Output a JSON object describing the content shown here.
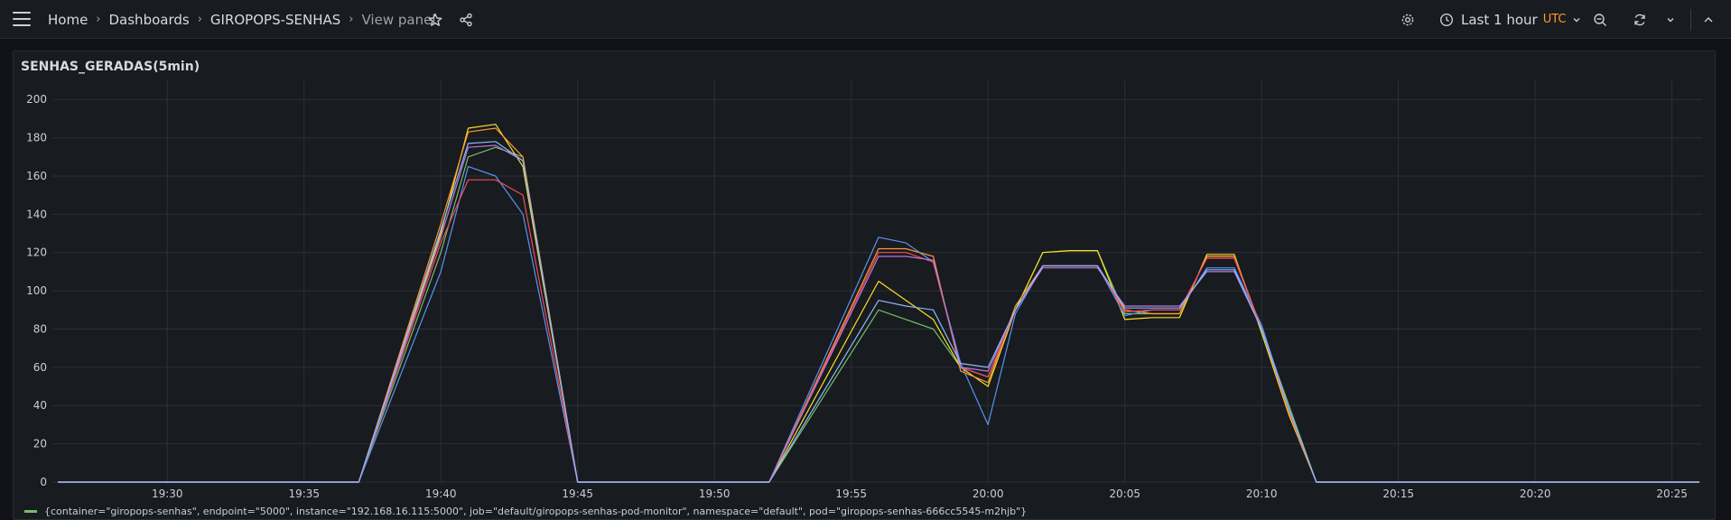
{
  "breadcrumb": {
    "home": "Home",
    "dashboards": "Dashboards",
    "dashboard": "GIROPOPS-SENHAS",
    "current": "View panel"
  },
  "time_picker": {
    "range": "Last 1 hour",
    "timezone": "UTC"
  },
  "panel": {
    "title": "SENHAS_GERADAS(5min)"
  },
  "chart_data": {
    "type": "line",
    "title": "SENHAS_GERADAS(5min)",
    "x_ticks": [
      "19:30",
      "19:35",
      "19:40",
      "19:45",
      "19:50",
      "19:55",
      "20:00",
      "20:05",
      "20:10",
      "20:15",
      "20:20",
      "20:25"
    ],
    "y_ticks": [
      0,
      20,
      40,
      60,
      80,
      100,
      120,
      140,
      160,
      180,
      200
    ],
    "ylim": [
      0,
      210
    ],
    "grid": true,
    "legend_position": "bottom",
    "series": [
      {
        "name": "{container=\"giropops-senhas\", endpoint=\"5000\", instance=\"192.168.16.115:5000\", job=\"default/giropops-senhas-pod-monitor\", namespace=\"default\", pod=\"giropops-senhas-666cc5545-m2hjb\"}",
        "color": "#73bf69",
        "x": [
          "19:26",
          "19:37",
          "19:40",
          "19:41",
          "19:42",
          "19:43",
          "19:45",
          "19:52",
          "19:56",
          "19:57",
          "19:58",
          "19:59",
          "20:00",
          "20:01",
          "20:02",
          "20:03",
          "20:04",
          "20:05",
          "20:06",
          "20:07",
          "20:08",
          "20:09",
          "20:10",
          "20:11",
          "20:12",
          "20:26"
        ],
        "values": [
          0,
          0,
          120,
          170,
          175,
          170,
          0,
          0,
          90,
          85,
          80,
          60,
          55,
          90,
          120,
          121,
          121,
          88,
          88,
          88,
          118,
          118,
          80,
          40,
          0,
          0
        ]
      },
      {
        "color": "#fade2a",
        "x": [
          "19:26",
          "19:37",
          "19:40",
          "19:41",
          "19:42",
          "19:43",
          "19:45",
          "19:52",
          "19:56",
          "19:57",
          "19:58",
          "19:59",
          "20:00",
          "20:01",
          "20:02",
          "20:03",
          "20:04",
          "20:05",
          "20:06",
          "20:07",
          "20:08",
          "20:09",
          "20:10",
          "20:11",
          "20:12",
          "20:26"
        ],
        "values": [
          0,
          0,
          130,
          185,
          187,
          165,
          0,
          0,
          105,
          95,
          85,
          60,
          50,
          90,
          120,
          121,
          121,
          85,
          86,
          86,
          119,
          119,
          78,
          35,
          0,
          0
        ]
      },
      {
        "color": "#5794f2",
        "x": [
          "19:26",
          "19:37",
          "19:40",
          "19:41",
          "19:42",
          "19:43",
          "19:45",
          "19:52",
          "19:56",
          "19:57",
          "19:58",
          "19:59",
          "20:00",
          "20:01",
          "20:02",
          "20:03",
          "20:04",
          "20:05",
          "20:06",
          "20:07",
          "20:08",
          "20:09",
          "20:10",
          "20:11",
          "20:12",
          "20:26"
        ],
        "values": [
          0,
          0,
          110,
          165,
          160,
          140,
          0,
          0,
          128,
          125,
          115,
          62,
          30,
          88,
          113,
          113,
          113,
          87,
          90,
          90,
          112,
          112,
          82,
          38,
          0,
          0
        ]
      },
      {
        "color": "#ff9830",
        "x": [
          "19:26",
          "19:37",
          "19:40",
          "19:41",
          "19:42",
          "19:43",
          "19:45",
          "19:52",
          "19:56",
          "19:57",
          "19:58",
          "19:59",
          "20:00",
          "20:01",
          "20:02",
          "20:03",
          "20:04",
          "20:05",
          "20:06",
          "20:07",
          "20:08",
          "20:09",
          "20:10",
          "20:11",
          "20:12",
          "20:26"
        ],
        "values": [
          0,
          0,
          135,
          183,
          185,
          170,
          0,
          0,
          122,
          122,
          118,
          58,
          52,
          92,
          113,
          113,
          113,
          90,
          88,
          88,
          118,
          118,
          80,
          36,
          0,
          0
        ]
      },
      {
        "color": "#f2495c",
        "x": [
          "19:26",
          "19:37",
          "19:40",
          "19:41",
          "19:42",
          "19:43",
          "19:45",
          "19:52",
          "19:56",
          "19:57",
          "19:58",
          "19:59",
          "20:00",
          "20:01",
          "20:02",
          "20:03",
          "20:04",
          "20:05",
          "20:06",
          "20:07",
          "20:08",
          "20:09",
          "20:10",
          "20:11",
          "20:12",
          "20:26"
        ],
        "values": [
          0,
          0,
          125,
          158,
          158,
          150,
          0,
          0,
          120,
          120,
          115,
          60,
          55,
          90,
          113,
          113,
          113,
          89,
          90,
          90,
          117,
          117,
          80,
          37,
          0,
          0
        ]
      },
      {
        "color": "#b877d9",
        "x": [
          "19:26",
          "19:37",
          "19:40",
          "19:41",
          "19:42",
          "19:43",
          "19:45",
          "19:52",
          "19:56",
          "19:57",
          "19:58",
          "19:59",
          "20:00",
          "20:01",
          "20:02",
          "20:03",
          "20:04",
          "20:05",
          "20:06",
          "20:07",
          "20:08",
          "20:09",
          "20:10",
          "20:11",
          "20:12",
          "20:26"
        ],
        "values": [
          0,
          0,
          128,
          175,
          176,
          168,
          0,
          0,
          118,
          118,
          116,
          60,
          58,
          90,
          112,
          112,
          112,
          92,
          92,
          92,
          110,
          110,
          80,
          38,
          0,
          0
        ]
      },
      {
        "color": "#8ab8ff",
        "x": [
          "19:26",
          "19:37",
          "19:40",
          "19:41",
          "19:42",
          "19:43",
          "19:45",
          "19:52",
          "19:56",
          "19:57",
          "19:58",
          "19:59",
          "20:00",
          "20:01",
          "20:02",
          "20:03",
          "20:04",
          "20:05",
          "20:06",
          "20:07",
          "20:08",
          "20:09",
          "20:10",
          "20:11",
          "20:12",
          "20:26"
        ],
        "values": [
          0,
          0,
          132,
          177,
          178,
          168,
          0,
          0,
          95,
          92,
          90,
          62,
          60,
          90,
          113,
          113,
          113,
          91,
          91,
          91,
          111,
          111,
          80,
          38,
          0,
          0
        ]
      }
    ]
  }
}
